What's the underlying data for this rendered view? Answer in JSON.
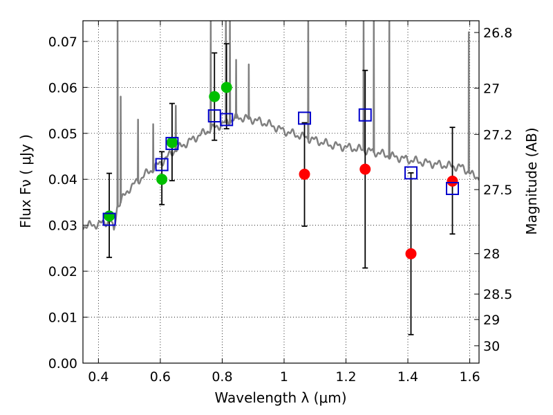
{
  "chart_data": {
    "type": "scatter",
    "title": "",
    "xlabel": "Wavelength  λ (μm)",
    "ylabel": "Flux  Fν  ( μJy )",
    "ylabel_right": "Magnitude (AB)",
    "xlim": [
      0.35,
      1.63
    ],
    "ylim": [
      0.0,
      0.0745
    ],
    "grid": true,
    "x_ticks": [
      0.4,
      0.6,
      0.8,
      1.0,
      1.2,
      1.4,
      1.6
    ],
    "x_tick_labels": [
      "0.4",
      "0.6",
      "0.8",
      "1",
      "1.2",
      "1.4",
      "1.6"
    ],
    "y_ticks": [
      0.0,
      0.01,
      0.02,
      0.03,
      0.04,
      0.05,
      0.06,
      0.07
    ],
    "y_tick_labels": [
      "0.00",
      "0.01",
      "0.02",
      "0.03",
      "0.04",
      "0.05",
      "0.06",
      "0.07"
    ],
    "right_ticks": [
      {
        "label": "26.8",
        "flux": 0.07194
      },
      {
        "label": "27",
        "flux": 0.05984
      },
      {
        "label": "27.2",
        "flux": 0.04977
      },
      {
        "label": "27.5",
        "flux": 0.03776
      },
      {
        "label": "28",
        "flux": 0.02382
      },
      {
        "label": "28.5",
        "flux": 0.01503
      },
      {
        "label": "29",
        "flux": 0.00949
      },
      {
        "label": "30",
        "flux": 0.00378
      }
    ],
    "series": [
      {
        "marker": "circle",
        "color": "#00bf00",
        "points": [
          {
            "x": 0.435,
            "y": 0.032,
            "err_lo": 0.023,
            "err_hi": 0.0413
          },
          {
            "x": 0.605,
            "y": 0.04,
            "err_lo": 0.0345,
            "err_hi": 0.046
          },
          {
            "x": 0.638,
            "y": 0.048,
            "err_lo": 0.0397,
            "err_hi": 0.0565
          },
          {
            "x": 0.775,
            "y": 0.058,
            "err_lo": 0.0485,
            "err_hi": 0.0675
          },
          {
            "x": 0.814,
            "y": 0.06,
            "err_lo": 0.051,
            "err_hi": 0.0695
          }
        ]
      },
      {
        "marker": "circle",
        "color": "#ff0000",
        "points": [
          {
            "x": 1.066,
            "y": 0.0411,
            "err_lo": 0.0298,
            "err_hi": 0.0523
          },
          {
            "x": 1.262,
            "y": 0.0422,
            "err_lo": 0.0207,
            "err_hi": 0.0637
          },
          {
            "x": 1.41,
            "y": 0.0238,
            "err_lo": 0.0062,
            "err_hi": 0.0414
          },
          {
            "x": 1.544,
            "y": 0.0396,
            "err_lo": 0.0281,
            "err_hi": 0.0513
          }
        ]
      },
      {
        "marker": "open-square",
        "color": "#0000cc",
        "points": [
          {
            "x": 0.435,
            "y": 0.0313
          },
          {
            "x": 0.605,
            "y": 0.0432
          },
          {
            "x": 0.638,
            "y": 0.0478
          },
          {
            "x": 0.775,
            "y": 0.0538
          },
          {
            "x": 0.814,
            "y": 0.053
          },
          {
            "x": 1.066,
            "y": 0.0533
          },
          {
            "x": 1.262,
            "y": 0.054
          },
          {
            "x": 1.41,
            "y": 0.0414
          },
          {
            "x": 1.544,
            "y": 0.038
          }
        ]
      }
    ],
    "spectrum": {
      "color": "#808080",
      "continuum": [
        [
          0.35,
          0.0298
        ],
        [
          0.4,
          0.0302
        ],
        [
          0.44,
          0.031
        ],
        [
          0.45,
          0.0285
        ],
        [
          0.46,
          0.034
        ],
        [
          0.5,
          0.038
        ],
        [
          0.55,
          0.041
        ],
        [
          0.6,
          0.0435
        ],
        [
          0.65,
          0.0465
        ],
        [
          0.7,
          0.0485
        ],
        [
          0.75,
          0.0505
        ],
        [
          0.8,
          0.052
        ],
        [
          0.85,
          0.0535
        ],
        [
          0.9,
          0.053
        ],
        [
          0.95,
          0.052
        ],
        [
          1.0,
          0.0505
        ],
        [
          1.05,
          0.0495
        ],
        [
          1.1,
          0.0485
        ],
        [
          1.15,
          0.0475
        ],
        [
          1.2,
          0.047
        ],
        [
          1.25,
          0.0465
        ],
        [
          1.3,
          0.0458
        ],
        [
          1.35,
          0.045
        ],
        [
          1.4,
          0.0443
        ],
        [
          1.45,
          0.0437
        ],
        [
          1.5,
          0.0432
        ],
        [
          1.55,
          0.0428
        ],
        [
          1.58,
          0.0425
        ],
        [
          1.61,
          0.0408
        ],
        [
          1.63,
          0.0405
        ]
      ],
      "emission_lines": [
        {
          "x": 0.462,
          "peak": 0.0745
        },
        {
          "x": 0.472,
          "peak": 0.058
        },
        {
          "x": 0.528,
          "peak": 0.053
        },
        {
          "x": 0.577,
          "peak": 0.052
        },
        {
          "x": 0.65,
          "peak": 0.056
        },
        {
          "x": 0.763,
          "peak": 0.0745
        },
        {
          "x": 0.812,
          "peak": 0.0745
        },
        {
          "x": 0.825,
          "peak": 0.0745
        },
        {
          "x": 0.845,
          "peak": 0.066
        },
        {
          "x": 0.886,
          "peak": 0.065
        },
        {
          "x": 1.078,
          "peak": 0.0745
        },
        {
          "x": 1.257,
          "peak": 0.0745
        },
        {
          "x": 1.29,
          "peak": 0.0745
        },
        {
          "x": 1.34,
          "peak": 0.0745
        },
        {
          "x": 1.597,
          "peak": 0.072
        }
      ]
    }
  }
}
